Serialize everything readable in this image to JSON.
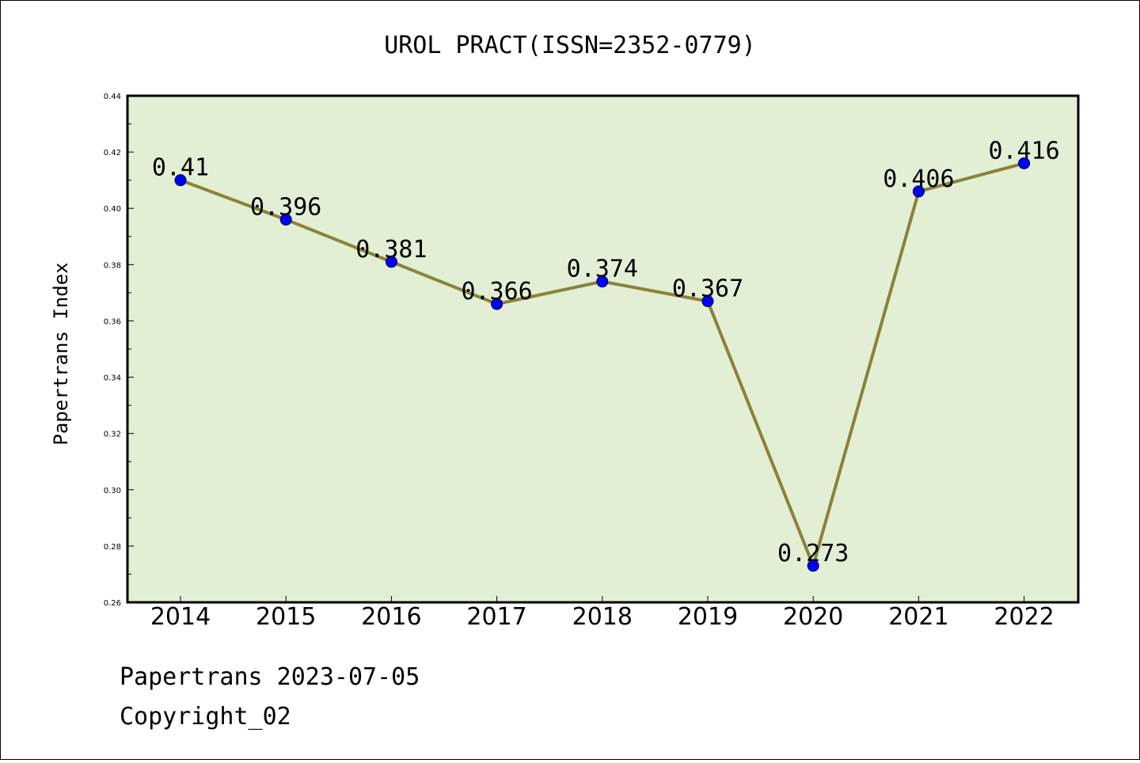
{
  "chart_data": {
    "type": "line",
    "title": "UROL PRACT(ISSN=2352-0779)",
    "xlabel": "",
    "ylabel": "Papertrans Index",
    "categories": [
      "2014",
      "2015",
      "2016",
      "2017",
      "2018",
      "2019",
      "2020",
      "2021",
      "2022"
    ],
    "series": [
      {
        "values": [
          0.41,
          0.396,
          0.381,
          0.366,
          0.374,
          0.367,
          0.273,
          0.406,
          0.416
        ]
      }
    ],
    "data_labels": [
      "0.41",
      "0.396",
      "0.381",
      "0.366",
      "0.374",
      "0.367",
      "0.273",
      "0.406",
      "0.416"
    ],
    "ylim": [
      0.26,
      0.44
    ],
    "yticks": [
      "0.26",
      "0.28",
      "0.30",
      "0.32",
      "0.34",
      "0.36",
      "0.38",
      "0.40",
      "0.42",
      "0.44"
    ],
    "grid": false,
    "legend": "none"
  },
  "colors": {
    "plot_background": "#e2efd5",
    "line": "#8b8139",
    "marker": "#0000ff"
  },
  "footer": {
    "date_line": "Papertrans 2023-07-05",
    "copyright": "Copyright_02"
  }
}
